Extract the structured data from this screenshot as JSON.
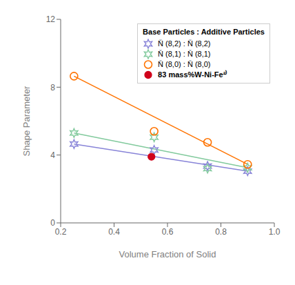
{
  "chart_data": {
    "type": "scatter",
    "xlabel": "Volume Fraction of Solid",
    "ylabel": "Shape Parameter",
    "xlim": [
      0.2,
      1.0
    ],
    "ylim": [
      0,
      12
    ],
    "xticks": [
      0.2,
      0.4,
      0.6,
      0.8,
      {
        "value": 1.0,
        "label": "1.0"
      }
    ],
    "yticks": [
      0,
      4,
      8,
      12
    ],
    "legend": "upper right",
    "legend_title": "Base Particles : Additive Particles",
    "series": [
      {
        "name": "Ň (8,2) : Ň (8,2)",
        "marker": "star",
        "color": "#8884d8",
        "x": [
          0.25,
          0.55,
          0.75,
          0.9
        ],
        "values": [
          4.65,
          4.3,
          3.35,
          3.05
        ],
        "line_x": [
          0.25,
          0.9
        ],
        "line_y": [
          4.65,
          3.05
        ]
      },
      {
        "name": "Ň (8,1) : Ň (8,1)",
        "marker": "star",
        "color": "#82ca9d",
        "x": [
          0.25,
          0.55,
          0.75,
          0.9
        ],
        "values": [
          5.3,
          5.05,
          3.2,
          3.25
        ],
        "line_x": [
          0.25,
          0.9
        ],
        "line_y": [
          5.3,
          3.25
        ]
      },
      {
        "name": "Ň (8,0) : Ň (8,0)",
        "marker": "circle",
        "color": "#ff7300",
        "x": [
          0.25,
          0.55,
          0.75,
          0.9
        ],
        "values": [
          8.65,
          5.4,
          4.75,
          3.45
        ],
        "line_x": [
          0.25,
          0.9
        ],
        "line_y": [
          8.65,
          3.45
        ]
      },
      {
        "name": "83 mass%W-Ni-Fe²⁾",
        "marker": "filled_circle",
        "color": "#d0021b",
        "x": [
          0.54
        ],
        "values": [
          3.9
        ]
      }
    ]
  }
}
